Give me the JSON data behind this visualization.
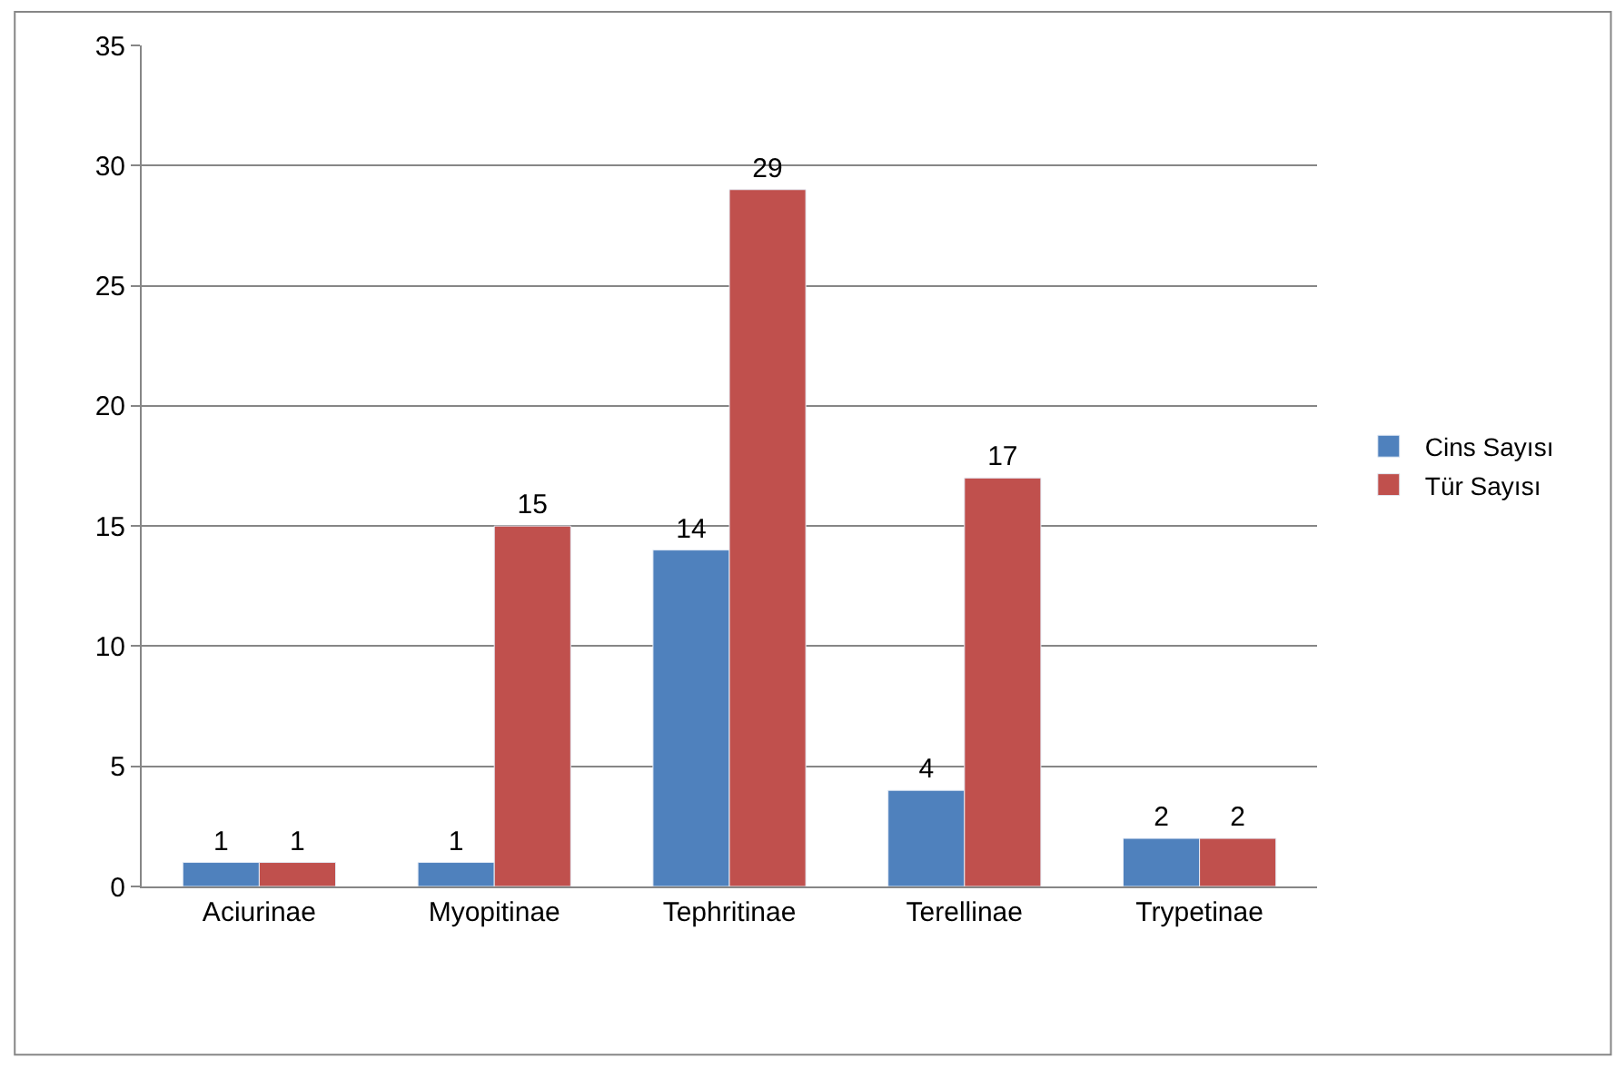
{
  "chart_data": {
    "type": "bar",
    "categories": [
      "Aciurinae",
      "Myopitinae",
      "Tephritinae",
      "Terellinae",
      "Trypetinae"
    ],
    "series": [
      {
        "name": "Cins Sayısı",
        "color": "#4f81bd",
        "values": [
          1,
          1,
          14,
          4,
          2
        ]
      },
      {
        "name": "Tür Sayısı",
        "color": "#c0504d",
        "values": [
          1,
          15,
          29,
          17,
          2
        ]
      }
    ],
    "ylim": [
      0,
      35
    ],
    "yticks": [
      0,
      5,
      10,
      15,
      20,
      25,
      30,
      35
    ],
    "grid": "y",
    "legend": "right",
    "data_labels": true
  }
}
